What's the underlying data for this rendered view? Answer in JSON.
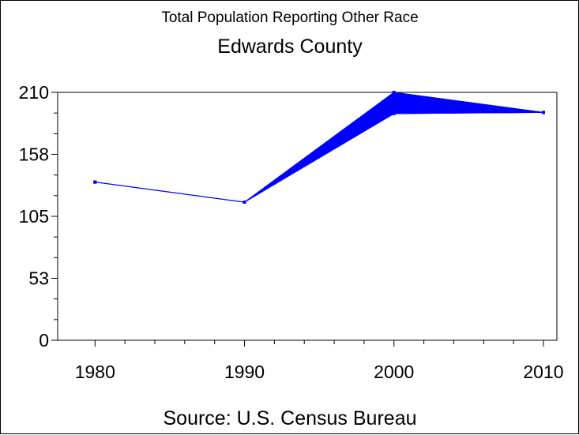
{
  "chart_data": {
    "type": "area",
    "title": "Total Population Reporting Other Race",
    "subtitle": "Edwards County",
    "footnote": "Source: U.S. Census Bureau",
    "xlabel": "",
    "ylabel": "",
    "x": [
      1980,
      1990,
      2000,
      2010
    ],
    "xticks": [
      "1980",
      "1990",
      "2000",
      "2010"
    ],
    "yticks": [
      "0",
      "53",
      "105",
      "158",
      "210"
    ],
    "ylim": [
      0,
      210
    ],
    "series": [
      {
        "values": [
          134,
          117,
          210,
          193
        ]
      },
      {
        "values": [
          134,
          117,
          192,
          193
        ]
      }
    ],
    "colors": {
      "line": "#0000ff",
      "fill": "#0000ff",
      "axis": "#000000"
    },
    "grid": false
  }
}
